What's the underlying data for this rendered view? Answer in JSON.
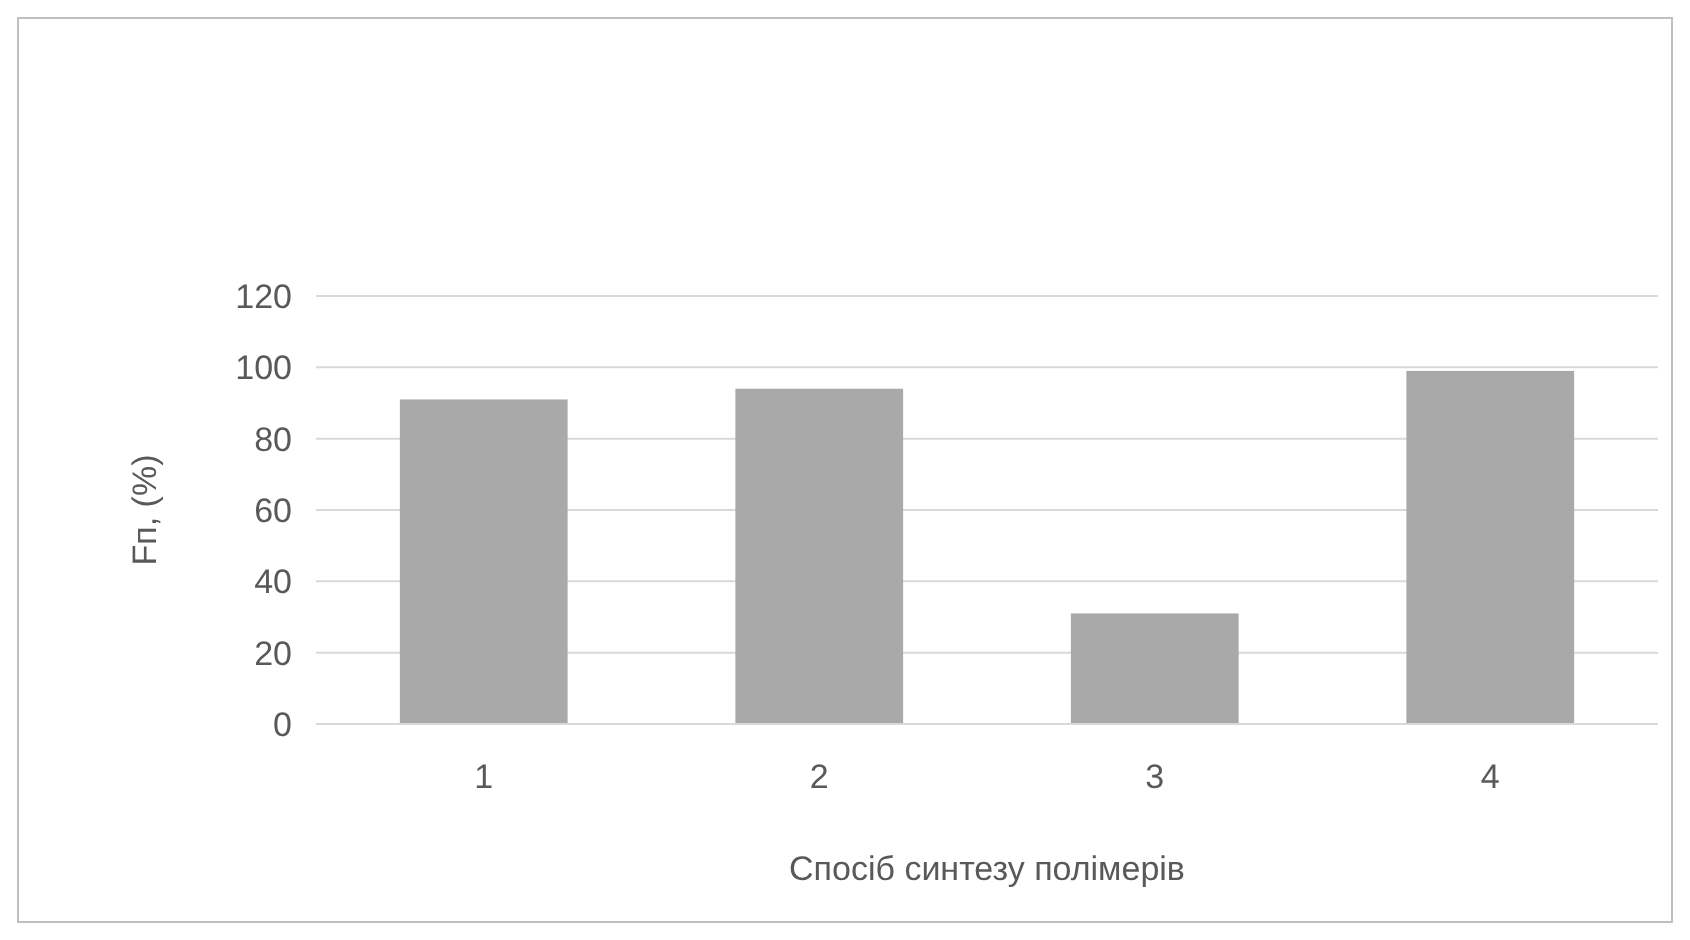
{
  "chart_data": {
    "type": "bar",
    "xlabel": "Спосіб синтезу полімерів",
    "ylabel": "Fп, (%)",
    "categories": [
      "1",
      "2",
      "3",
      "4"
    ],
    "values": [
      91,
      94,
      31,
      99
    ],
    "color": "#a9a9a9",
    "ylim": [
      0,
      120
    ],
    "yticks": [
      0,
      20,
      40,
      60,
      80,
      100,
      120
    ],
    "grid": "y"
  }
}
